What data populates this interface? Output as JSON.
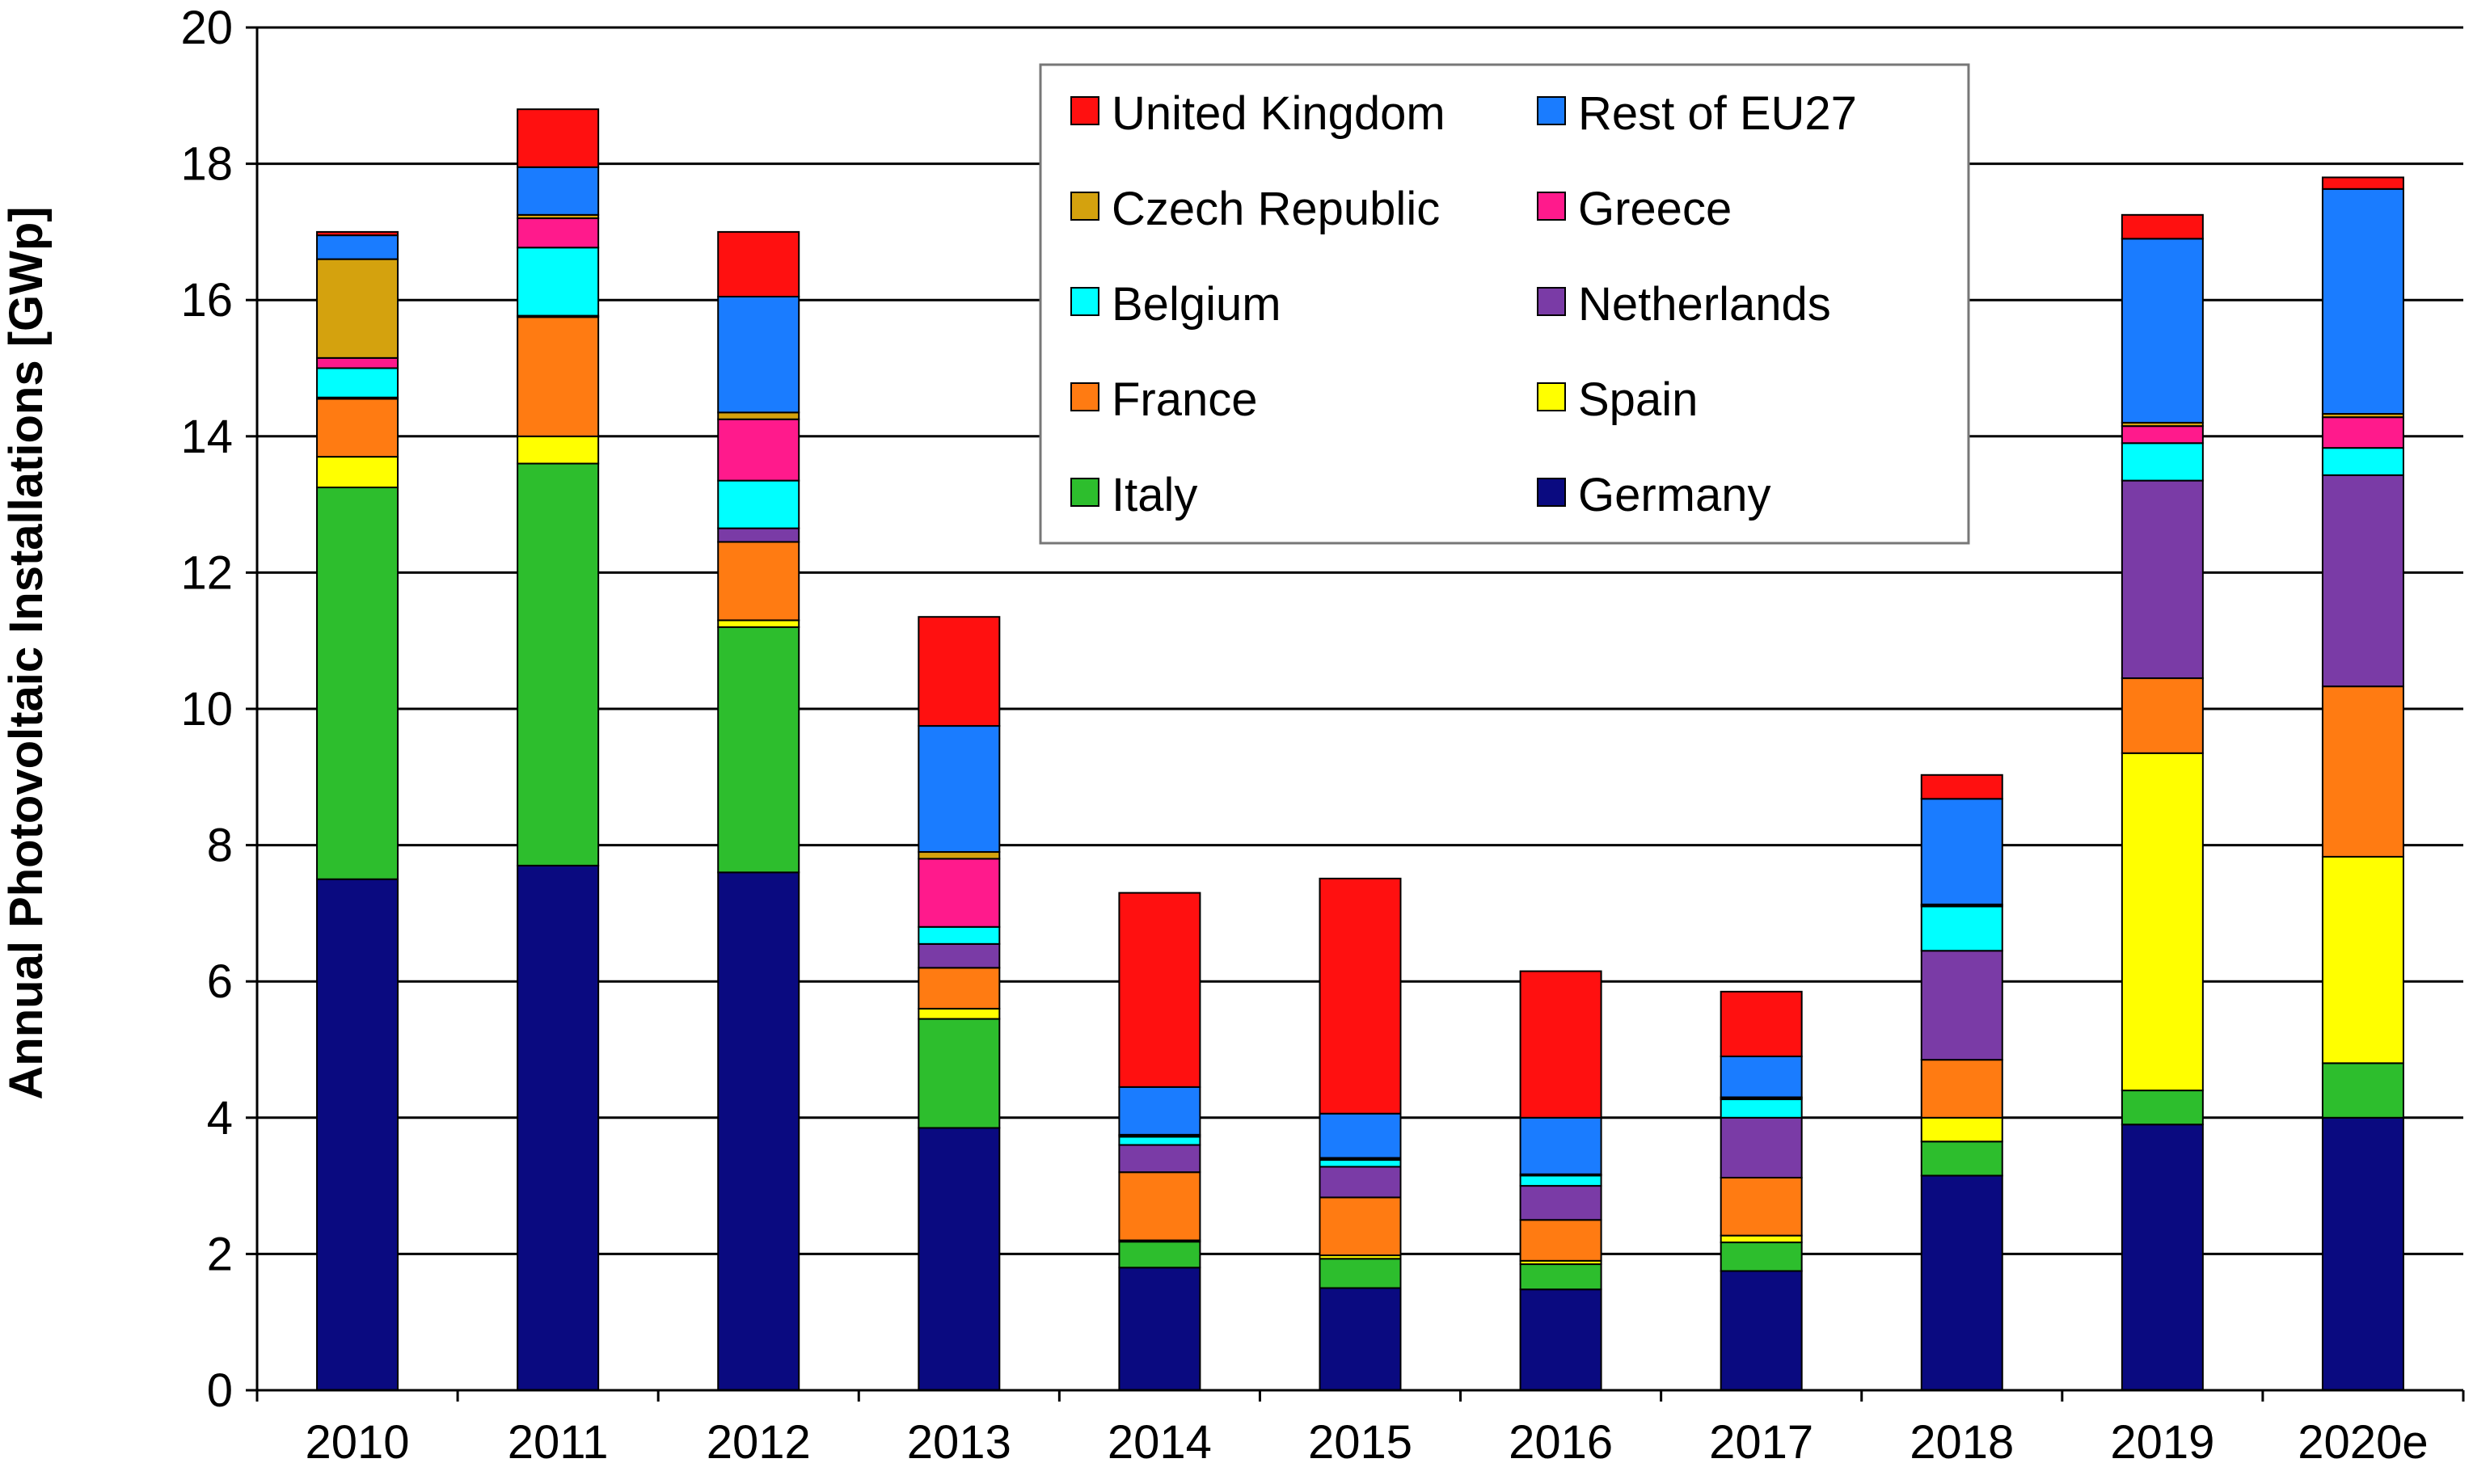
{
  "chart_data": {
    "type": "bar",
    "stacked": true,
    "title": "",
    "xlabel": "",
    "ylabel": "Annual Photovoltaic Installations [GWp]",
    "ylim": [
      0,
      20
    ],
    "yticks": [
      0,
      2,
      4,
      6,
      8,
      10,
      12,
      14,
      16,
      18,
      20
    ],
    "grid": true,
    "legend_position": "top-center",
    "categories": [
      "2010",
      "2011",
      "2012",
      "2013",
      "2014",
      "2015",
      "2016",
      "2017",
      "2018",
      "2019",
      "2020e"
    ],
    "series": [
      {
        "name": "Germany",
        "color": "#0a0a80",
        "values": [
          7.5,
          7.7,
          7.6,
          3.85,
          1.8,
          1.5,
          1.48,
          1.75,
          3.15,
          3.9,
          4.0
        ]
      },
      {
        "name": "Italy",
        "color": "#2dbe2d",
        "values": [
          5.75,
          5.9,
          3.6,
          1.6,
          0.38,
          0.43,
          0.37,
          0.42,
          0.5,
          0.5,
          0.8
        ]
      },
      {
        "name": "Spain",
        "color": "#ffff00",
        "values": [
          0.45,
          0.4,
          0.1,
          0.15,
          0.02,
          0.05,
          0.05,
          0.1,
          0.35,
          4.95,
          3.03
        ]
      },
      {
        "name": "France",
        "color": "#ff7b12",
        "values": [
          0.85,
          1.75,
          1.15,
          0.6,
          1.0,
          0.85,
          0.6,
          0.85,
          0.85,
          1.1,
          2.5
        ]
      },
      {
        "name": "Netherlands",
        "color": "#7a3ba6",
        "values": [
          0.02,
          0.02,
          0.2,
          0.35,
          0.4,
          0.45,
          0.5,
          0.88,
          1.6,
          2.9,
          3.1
        ]
      },
      {
        "name": "Belgium",
        "color": "#00ffff",
        "values": [
          0.43,
          1.0,
          0.7,
          0.25,
          0.12,
          0.1,
          0.15,
          0.27,
          0.65,
          0.55,
          0.4
        ]
      },
      {
        "name": "Greece",
        "color": "#ff1a8c",
        "values": [
          0.15,
          0.43,
          0.9,
          1.0,
          0.02,
          0.02,
          0.01,
          0.02,
          0.02,
          0.25,
          0.45
        ]
      },
      {
        "name": "Czech Republic",
        "color": "#d4a20e",
        "values": [
          1.45,
          0.05,
          0.1,
          0.1,
          0.01,
          0.01,
          0.01,
          0.01,
          0.01,
          0.05,
          0.05
        ]
      },
      {
        "name": "Rest of EU27",
        "color": "#1a7cff",
        "values": [
          0.35,
          0.7,
          1.7,
          1.85,
          0.7,
          0.65,
          0.83,
          0.6,
          1.55,
          2.7,
          3.3
        ]
      },
      {
        "name": "United Kingdom",
        "color": "#ff1010",
        "values": [
          0.05,
          0.85,
          0.95,
          1.6,
          2.85,
          3.45,
          2.15,
          0.95,
          0.35,
          0.35,
          0.17
        ]
      }
    ],
    "legend_order": [
      "United Kingdom",
      "Rest of EU27",
      "Czech Republic",
      "Greece",
      "Belgium",
      "Netherlands",
      "France",
      "Spain",
      "Italy",
      "Germany"
    ]
  }
}
